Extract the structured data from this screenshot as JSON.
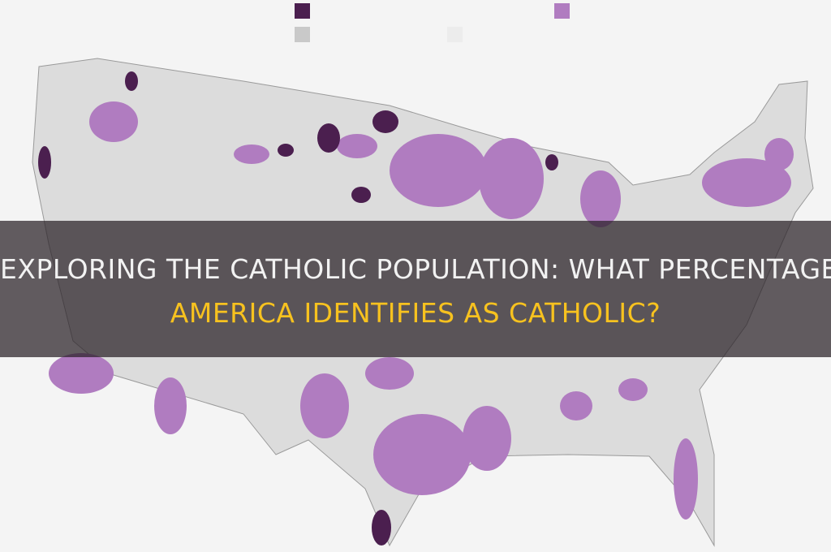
{
  "header": {
    "title_lines": [
      "EXPLORING THE CATHOLIC POPULATION: WHAT PERCENTAGE OF",
      "AMERICA IDENTIFIES AS CATHOLIC?"
    ]
  }
}
